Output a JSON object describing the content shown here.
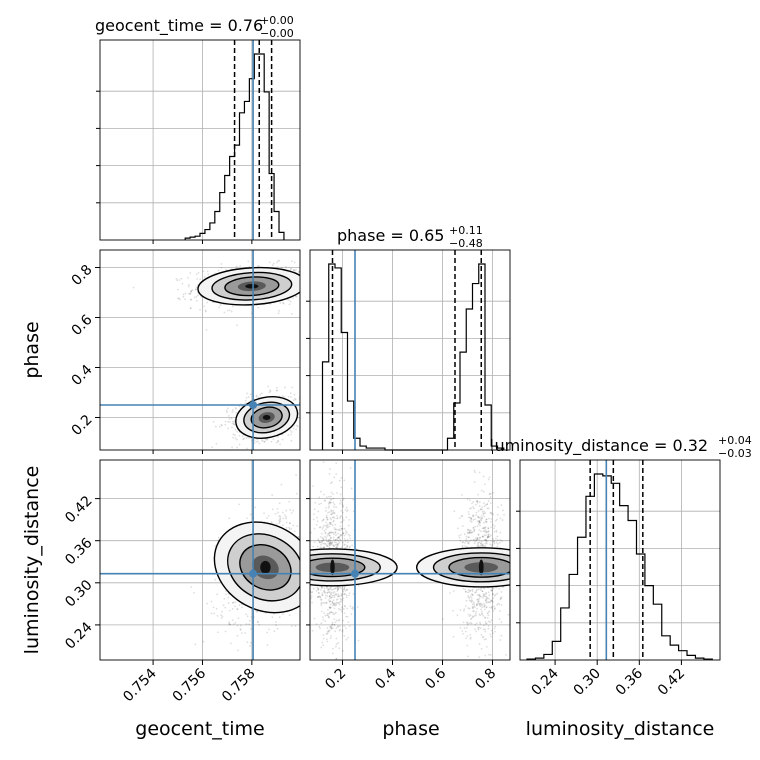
{
  "chart_data": {
    "type": "corner",
    "parameters": [
      "geocent_time",
      "phase",
      "luminosity_distance"
    ],
    "axis_labels": [
      "geocent_time",
      "phase",
      "luminosity_distance"
    ],
    "titles": [
      {
        "name": "geocent_time",
        "median": "0.76",
        "upper": "+0.00",
        "lower": "−0.00"
      },
      {
        "name": "phase",
        "median": "0.65",
        "upper": "+0.11",
        "lower": "−0.48"
      },
      {
        "name": "luminosity_distance",
        "median": "0.32",
        "upper": "+0.04",
        "lower": "−0.03"
      }
    ],
    "ranges": {
      "geocent_time": [
        0.75185,
        0.75995
      ],
      "phase": [
        0.07,
        0.87
      ],
      "luminosity_distance": [
        0.19,
        0.475
      ]
    },
    "ticks": {
      "geocent_time": [
        "0.754",
        "0.756",
        "0.758"
      ],
      "phase": [
        "0.2",
        "0.4",
        "0.6",
        "0.8"
      ],
      "luminosity_distance": [
        "0.24",
        "0.30",
        "0.36",
        "0.42"
      ]
    },
    "truths": {
      "geocent_time": 0.75805,
      "phase": 0.25,
      "luminosity_distance": 0.313
    },
    "quantile_lines": {
      "geocent_time": [
        0.7573,
        0.7583,
        0.7588
      ],
      "phase": [
        0.16,
        0.65,
        0.755
      ],
      "luminosity_distance": [
        0.29,
        0.323,
        0.365
      ]
    },
    "hist_1d": {
      "geocent_time": {
        "edges": [
          0.7553,
          0.7555,
          0.7557,
          0.7559,
          0.7561,
          0.7563,
          0.7565,
          0.7567,
          0.7569,
          0.7571,
          0.7573,
          0.7575,
          0.7577,
          0.7579,
          0.7581,
          0.7583,
          0.7585,
          0.7587,
          0.7589,
          0.7591,
          0.7593
        ],
        "counts": [
          0.01,
          0.015,
          0.02,
          0.035,
          0.055,
          0.09,
          0.15,
          0.25,
          0.34,
          0.44,
          0.5,
          0.67,
          0.73,
          0.85,
          0.98,
          0.98,
          0.78,
          0.35,
          0.15,
          0.04
        ]
      },
      "phase": {
        "edges": [
          0.12,
          0.145,
          0.17,
          0.195,
          0.22,
          0.245,
          0.27,
          0.295,
          0.32,
          0.345,
          0.37,
          0.395,
          0.42,
          0.445,
          0.47,
          0.495,
          0.52,
          0.545,
          0.57,
          0.595,
          0.62,
          0.645,
          0.67,
          0.695,
          0.72,
          0.745,
          0.77,
          0.795,
          0.82,
          0.845
        ],
        "counts": [
          0.45,
          0.95,
          0.93,
          0.6,
          0.25,
          0.06,
          0.02,
          0.01,
          0.01,
          0.01,
          0.0,
          0.0,
          0.0,
          0.0,
          0.0,
          0.0,
          0.0,
          0.0,
          0.0,
          0.0,
          0.06,
          0.24,
          0.5,
          0.72,
          0.85,
          0.95,
          0.23,
          0.02,
          0.01
        ]
      },
      "luminosity_distance": {
        "edges": [
          0.2,
          0.212,
          0.224,
          0.236,
          0.248,
          0.26,
          0.272,
          0.284,
          0.296,
          0.308,
          0.32,
          0.332,
          0.344,
          0.356,
          0.368,
          0.38,
          0.392,
          0.404,
          0.416,
          0.428,
          0.44,
          0.452,
          0.464
        ],
        "counts": [
          0.005,
          0.01,
          0.03,
          0.1,
          0.28,
          0.46,
          0.66,
          0.88,
          1.0,
          0.99,
          0.95,
          0.83,
          0.75,
          0.57,
          0.4,
          0.3,
          0.13,
          0.08,
          0.05,
          0.025,
          0.01,
          0.005
        ]
      }
    },
    "clusters_2d": [
      {
        "pair": [
          "geocent_time",
          "phase"
        ],
        "blobs": [
          {
            "cx": 0.758,
            "cy": 0.725,
            "sx": 0.00095,
            "sy": 0.032,
            "rho": 0.15
          },
          {
            "cx": 0.7586,
            "cy": 0.2,
            "sx": 0.00055,
            "sy": 0.035,
            "rho": 0.2
          }
        ]
      },
      {
        "pair": [
          "geocent_time",
          "luminosity_distance"
        ],
        "blobs": [
          {
            "cx": 0.75855,
            "cy": 0.322,
            "sx": 0.00075,
            "sy": 0.033,
            "rho": 0.35
          }
        ]
      },
      {
        "pair": [
          "phase",
          "luminosity_distance"
        ],
        "blobs": [
          {
            "cx": 0.16,
            "cy": 0.322,
            "sx": 0.032,
            "sy": 0.04,
            "rho": 0.0
          },
          {
            "cx": 0.755,
            "cy": 0.322,
            "sx": 0.034,
            "sy": 0.04,
            "rho": 0.0
          }
        ]
      }
    ],
    "grid": true,
    "colors": {
      "truth": "#4682b4",
      "hist": "#000000",
      "grid": "#b0b0b0",
      "frame": "#000000"
    }
  }
}
